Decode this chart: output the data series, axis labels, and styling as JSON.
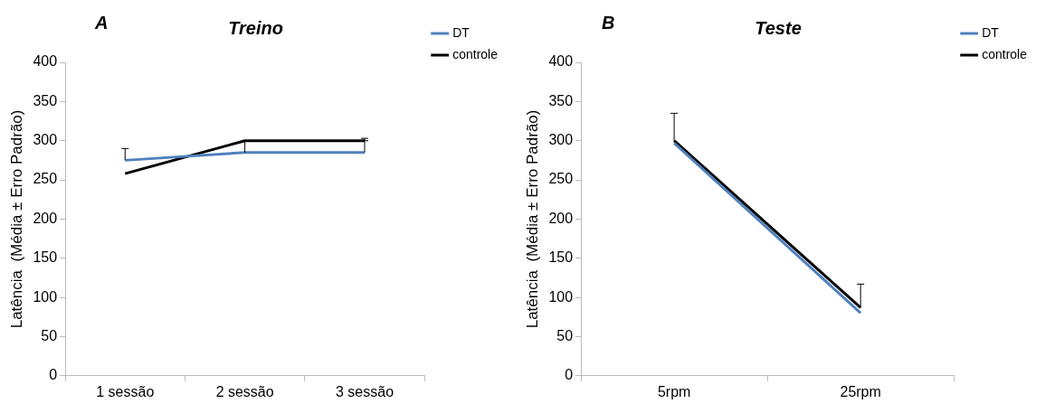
{
  "chart_data": [
    {
      "type": "line",
      "title": "Treino",
      "ylabel": "Latência  (Média ± Erro Padrão)",
      "annotations": [
        "A"
      ],
      "categories": [
        "1 sessão",
        "2 sessão",
        "3 sessão"
      ],
      "series": [
        {
          "name": "DT",
          "color": "#4f81bd",
          "values": [
            275,
            285,
            285
          ],
          "errors": [
            [
              275,
              290
            ],
            [
              285,
              300
            ],
            [
              285,
              300
            ]
          ]
        },
        {
          "name": "controle",
          "color": "#000000",
          "values": [
            258,
            300,
            300
          ],
          "errors": [
            null,
            null,
            [
              300,
              303
            ]
          ]
        }
      ],
      "ylim": [
        0,
        400
      ],
      "yticks": [
        0,
        50,
        100,
        150,
        200,
        250,
        300,
        350,
        400
      ],
      "grid": false,
      "legend": "top right",
      "marker": "none",
      "line_style": "solid"
    },
    {
      "type": "line",
      "title": "Teste",
      "ylabel": "Latência  (Média ± Erro Padrão)",
      "annotations": [
        "B"
      ],
      "categories": [
        "5rpm",
        "25rpm"
      ],
      "series": [
        {
          "name": "DT",
          "color": "#4f81bd",
          "values": [
            297,
            80
          ]
        },
        {
          "name": "controle",
          "color": "#000000",
          "values": [
            300,
            87
          ],
          "errors": [
            [
              300,
              335
            ],
            [
              87,
              117
            ]
          ]
        }
      ],
      "ylim": [
        0,
        400
      ],
      "yticks": [
        0,
        50,
        100,
        150,
        200,
        250,
        300,
        350,
        400
      ],
      "grid": false,
      "legend": "top right",
      "marker": "none",
      "line_style": "solid"
    }
  ]
}
